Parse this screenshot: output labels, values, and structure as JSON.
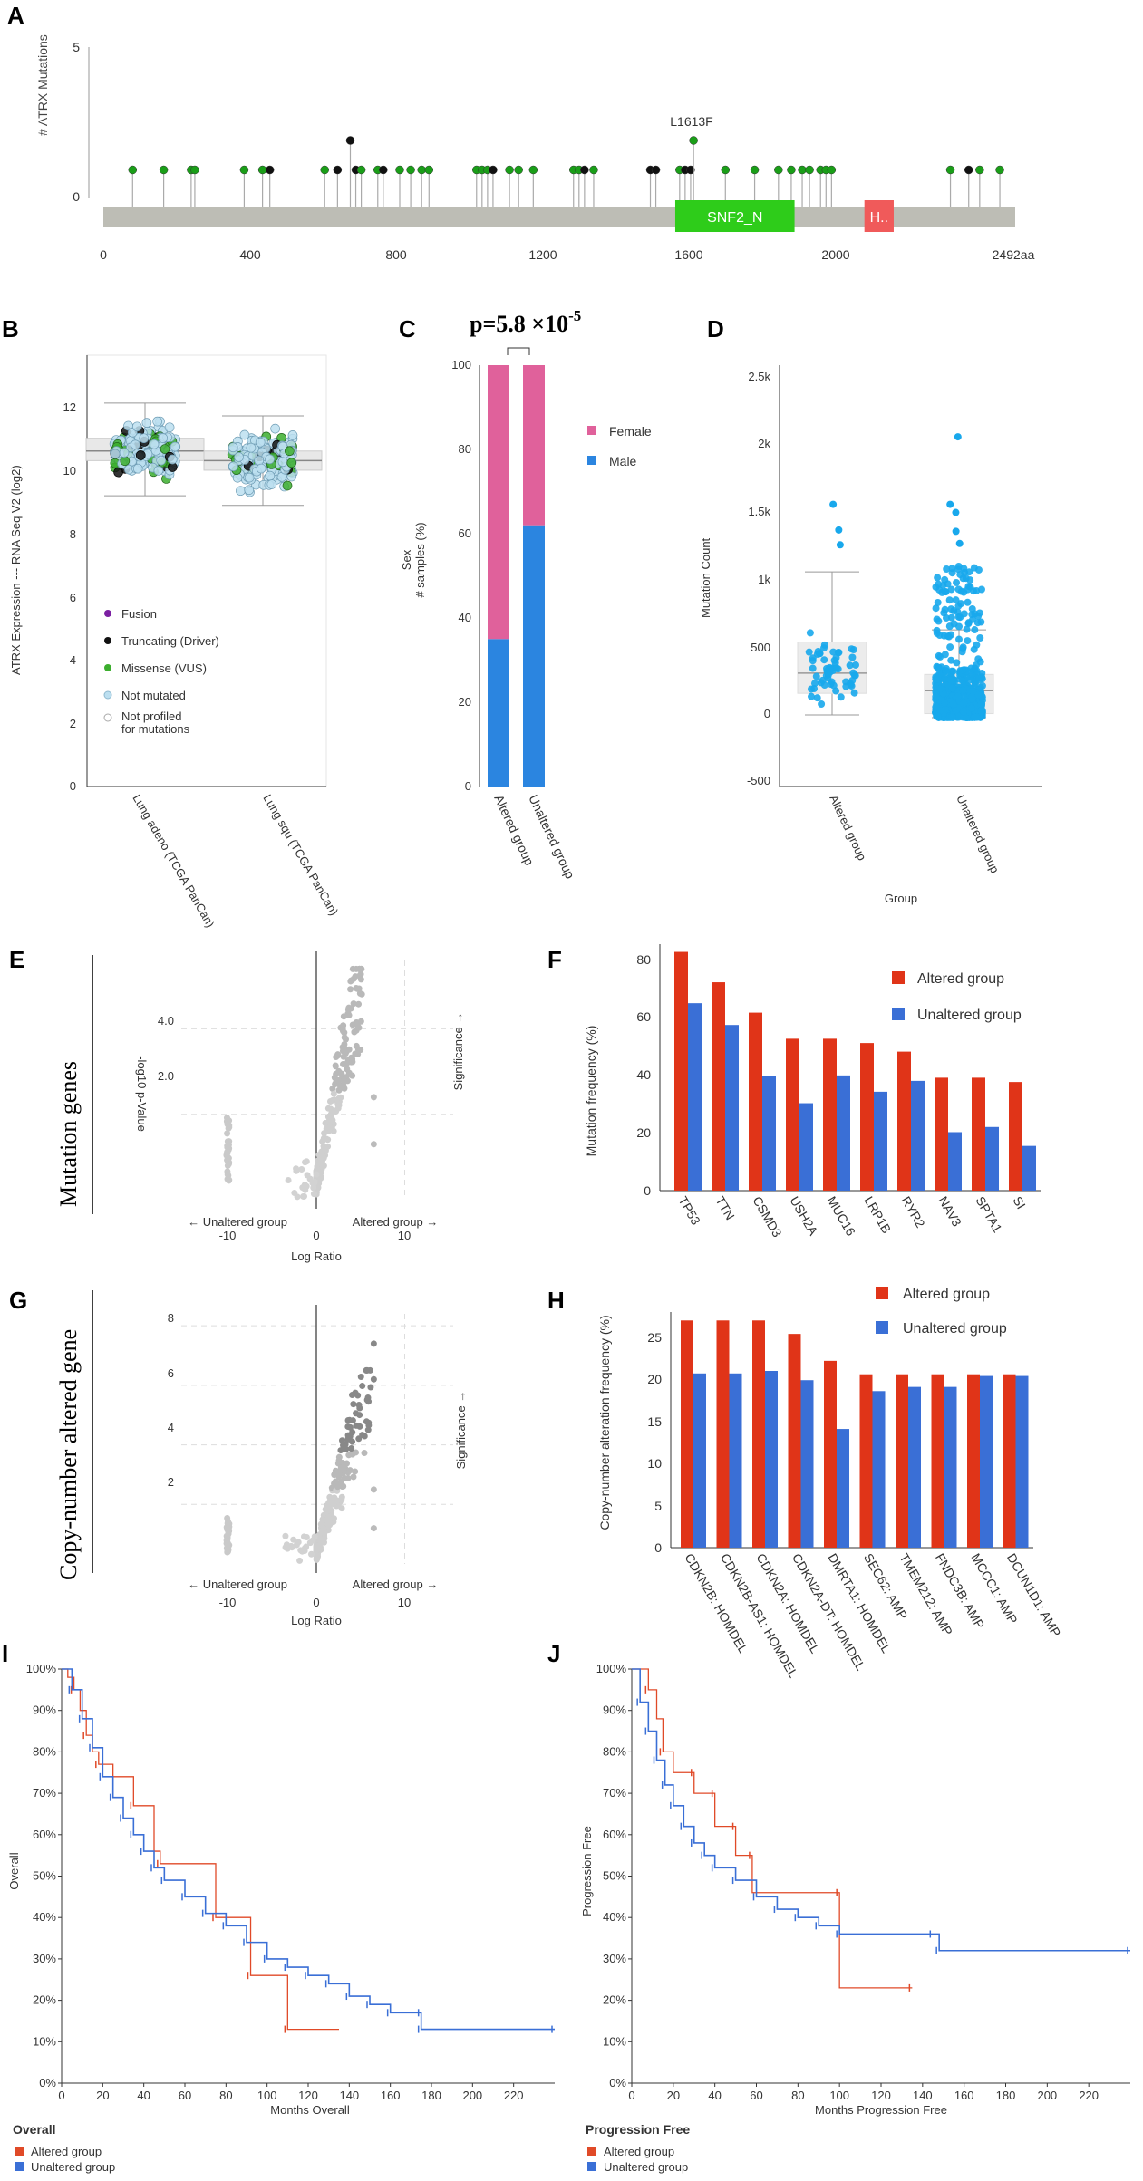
{
  "panels": {
    "A": "A",
    "B": "B",
    "C": "C",
    "D": "D",
    "E": "E",
    "F": "F",
    "G": "G",
    "H": "H",
    "I": "I",
    "J": "J"
  },
  "chart_data": [
    {
      "id": "A",
      "type": "scatter",
      "title": "",
      "ylabel": "# ATRX Mutations",
      "y_ticks": [
        "5",
        "0"
      ],
      "x_ticks": [
        "0",
        "400",
        "800",
        "1200",
        "1600",
        "2000",
        "2492aa"
      ],
      "xlim": [
        0,
        2492
      ],
      "ylim": [
        0,
        5
      ],
      "domains": [
        {
          "name": "SNF2_N",
          "start": 1563,
          "end": 1889,
          "color": "#2ecc1a"
        },
        {
          "name": "H..",
          "start": 2080,
          "end": 2160,
          "color": "#f05a5a"
        }
      ],
      "annotation": "L1613F",
      "lollipops": [
        {
          "pos": 80,
          "count": 1,
          "type": "missense"
        },
        {
          "pos": 165,
          "count": 1,
          "type": "missense"
        },
        {
          "pos": 240,
          "count": 1,
          "type": "missense"
        },
        {
          "pos": 250,
          "count": 1,
          "type": "missense"
        },
        {
          "pos": 385,
          "count": 1,
          "type": "missense"
        },
        {
          "pos": 435,
          "count": 1,
          "type": "missense"
        },
        {
          "pos": 455,
          "count": 1,
          "type": "truncating"
        },
        {
          "pos": 605,
          "count": 1,
          "type": "missense"
        },
        {
          "pos": 640,
          "count": 1,
          "type": "truncating"
        },
        {
          "pos": 675,
          "count": 2,
          "type": "truncating"
        },
        {
          "pos": 690,
          "count": 1,
          "type": "truncating"
        },
        {
          "pos": 705,
          "count": 1,
          "type": "missense"
        },
        {
          "pos": 750,
          "count": 1,
          "type": "missense"
        },
        {
          "pos": 765,
          "count": 1,
          "type": "truncating"
        },
        {
          "pos": 810,
          "count": 1,
          "type": "missense"
        },
        {
          "pos": 840,
          "count": 1,
          "type": "missense"
        },
        {
          "pos": 870,
          "count": 1,
          "type": "missense"
        },
        {
          "pos": 890,
          "count": 1,
          "type": "missense"
        },
        {
          "pos": 1020,
          "count": 1,
          "type": "missense"
        },
        {
          "pos": 1035,
          "count": 1,
          "type": "missense"
        },
        {
          "pos": 1050,
          "count": 1,
          "type": "missense"
        },
        {
          "pos": 1065,
          "count": 1,
          "type": "truncating"
        },
        {
          "pos": 1110,
          "count": 1,
          "type": "missense"
        },
        {
          "pos": 1135,
          "count": 1,
          "type": "missense"
        },
        {
          "pos": 1175,
          "count": 1,
          "type": "missense"
        },
        {
          "pos": 1285,
          "count": 1,
          "type": "missense"
        },
        {
          "pos": 1300,
          "count": 1,
          "type": "missense"
        },
        {
          "pos": 1315,
          "count": 1,
          "type": "truncating"
        },
        {
          "pos": 1340,
          "count": 1,
          "type": "missense"
        },
        {
          "pos": 1495,
          "count": 1,
          "type": "truncating"
        },
        {
          "pos": 1510,
          "count": 1,
          "type": "truncating"
        },
        {
          "pos": 1575,
          "count": 1,
          "type": "missense"
        },
        {
          "pos": 1590,
          "count": 1,
          "type": "truncating"
        },
        {
          "pos": 1605,
          "count": 1,
          "type": "truncating"
        },
        {
          "pos": 1613,
          "count": 2,
          "type": "missense"
        },
        {
          "pos": 1700,
          "count": 1,
          "type": "missense"
        },
        {
          "pos": 1780,
          "count": 1,
          "type": "missense"
        },
        {
          "pos": 1845,
          "count": 1,
          "type": "missense"
        },
        {
          "pos": 1880,
          "count": 1,
          "type": "missense"
        },
        {
          "pos": 1910,
          "count": 1,
          "type": "missense"
        },
        {
          "pos": 1930,
          "count": 1,
          "type": "missense"
        },
        {
          "pos": 1960,
          "count": 1,
          "type": "missense"
        },
        {
          "pos": 1975,
          "count": 1,
          "type": "missense"
        },
        {
          "pos": 1990,
          "count": 1,
          "type": "missense"
        },
        {
          "pos": 2315,
          "count": 1,
          "type": "missense"
        },
        {
          "pos": 2365,
          "count": 1,
          "type": "truncating"
        },
        {
          "pos": 2395,
          "count": 1,
          "type": "missense"
        },
        {
          "pos": 2450,
          "count": 1,
          "type": "missense"
        }
      ]
    },
    {
      "id": "B",
      "type": "scatter",
      "ylabel": "ATRX Expression --- RNA Seq V2 (log2)",
      "y_ticks": [
        "12",
        "10",
        "8",
        "6",
        "4",
        "2",
        "0"
      ],
      "ylim": [
        0,
        13.5
      ],
      "categories": [
        "Lung adeno (TCGA PanCan)",
        "Lung squ (TCGA PanCan)"
      ],
      "box": [
        {
          "q1": 10.2,
          "median": 10.5,
          "q3": 10.9,
          "whisker_low": 9.1,
          "whisker_high": 12.0
        },
        {
          "q1": 9.9,
          "median": 10.2,
          "q3": 10.5,
          "whisker_low": 8.8,
          "whisker_high": 11.6
        }
      ],
      "legend": [
        "Fusion",
        "Truncating (Driver)",
        "Missense (VUS)",
        "Not mutated",
        "Not profiled",
        "for mutations"
      ]
    },
    {
      "id": "C",
      "type": "bar",
      "title": "p=5.8 ×10",
      "p_exponent": "-5",
      "ylabel_lines": [
        "Sex",
        "# samples (%)"
      ],
      "y_ticks": [
        "100",
        "80",
        "60",
        "40",
        "20",
        "0"
      ],
      "ylim": [
        0,
        100
      ],
      "categories": [
        "Altered group",
        "Unaltered group"
      ],
      "series": [
        {
          "name": "Male",
          "values": [
            35,
            62
          ],
          "color": "#2b85e0"
        },
        {
          "name": "Female",
          "values": [
            65,
            38
          ],
          "color": "#e0619b"
        }
      ],
      "legend": [
        "Female",
        "Male"
      ]
    },
    {
      "id": "D",
      "type": "scatter",
      "ylabel": "Mutation Count",
      "xlabel": "Group",
      "y_ticks": [
        "2.5k",
        "2k",
        "1.5k",
        "1k",
        "500",
        "0",
        "-500"
      ],
      "ylim": [
        -500,
        2600
      ],
      "categories": [
        "Altered group",
        "Unaltered group"
      ],
      "box": [
        {
          "q1": 180,
          "median": 330,
          "q3": 560,
          "whisker_low": 20,
          "whisker_high": 1080
        },
        {
          "q1": 30,
          "median": 200,
          "q3": 320,
          "whisker_low": 0,
          "whisker_high": 650
        }
      ],
      "outliers": [
        [
          0,
          1580
        ],
        [
          0,
          1390
        ],
        [
          0,
          1280
        ],
        [
          1,
          2080
        ],
        [
          1,
          1580
        ],
        [
          1,
          1520
        ],
        [
          1,
          1380
        ],
        [
          1,
          1290
        ]
      ]
    },
    {
      "id": "E",
      "type": "scatter",
      "row_label": "Mutation genes",
      "ylabel": "-log10 p-Value",
      "xlabel": "Log Ratio",
      "y_ticks": [
        "4.0",
        "2.0"
      ],
      "x_ticks": [
        "-10",
        "0",
        "10"
      ],
      "xlim": [
        -16,
        16
      ],
      "ylim": [
        0,
        5.6
      ],
      "left_note": "← Unaltered group",
      "right_note": "Altered group →",
      "side_note": "Significance →"
    },
    {
      "id": "F",
      "type": "bar",
      "ylabel": "Mutation frequency (%)",
      "y_ticks": [
        "80",
        "60",
        "40",
        "20",
        "0"
      ],
      "ylim": [
        0,
        86
      ],
      "categories": [
        "TP53",
        "TTN",
        "CSMD3",
        "USH2A",
        "MUC16",
        "LRP1B",
        "RYR2",
        "NAV3",
        "SPTA1",
        "SI"
      ],
      "series": [
        {
          "name": "Altered group",
          "values": [
            83.3,
            72.7,
            62.1,
            53.0,
            53.0,
            51.5,
            48.5,
            39.4,
            39.4,
            37.9
          ],
          "color": "#e03418"
        },
        {
          "name": "Unaltered group",
          "values": [
            65.4,
            57.8,
            40.0,
            30.5,
            40.2,
            34.5,
            38.3,
            20.4,
            22.2,
            15.6
          ],
          "color": "#3a6fd6"
        }
      ]
    },
    {
      "id": "G",
      "type": "scatter",
      "row_label": "Copy-number altered gene",
      "ylabel": "",
      "xlabel": "Log Ratio",
      "y_ticks": [
        "8",
        "6",
        "4",
        "2"
      ],
      "x_ticks": [
        "-10",
        "0",
        "10"
      ],
      "xlim": [
        -16,
        16
      ],
      "ylim": [
        0,
        8.4
      ],
      "left_note": "← Unaltered group",
      "right_note": "Altered group →",
      "side_note": "Significance →"
    },
    {
      "id": "H",
      "type": "bar",
      "ylabel": "Copy-number alteration frequency (%)",
      "y_ticks": [
        "25",
        "20",
        "15",
        "10",
        "5",
        "0"
      ],
      "ylim": [
        0,
        28
      ],
      "categories": [
        "CDKN2B: HOMDEL",
        "CDKN2B-AS1: HOMDEL",
        "CDKN2A: HOMDEL",
        "CDKN2A-DT: HOMDEL",
        "DMRTA1: HOMDEL",
        "SEC62: AMP",
        "TMEM212: AMP",
        "FNDC3B: AMP",
        "MCCC1: AMP",
        "DCUN1D1: AMP"
      ],
      "series": [
        {
          "name": "Altered group",
          "values": [
            27.0,
            27.0,
            27.0,
            25.4,
            22.2,
            20.6,
            20.6,
            20.6,
            20.6,
            20.6
          ],
          "color": "#e03418"
        },
        {
          "name": "Unaltered group",
          "values": [
            20.7,
            20.7,
            21.0,
            19.9,
            14.1,
            18.6,
            19.1,
            19.1,
            20.4,
            20.4
          ],
          "color": "#3a6fd6"
        }
      ]
    },
    {
      "id": "I",
      "type": "line",
      "ylabel": "Overall",
      "xlabel": "Months Overall",
      "legend_title": "Overall",
      "y_ticks": [
        "100%",
        "90%",
        "80%",
        "70%",
        "60%",
        "50%",
        "40%",
        "30%",
        "20%",
        "10%",
        "0%"
      ],
      "x_ticks": [
        "0",
        "20",
        "40",
        "60",
        "80",
        "100",
        "120",
        "140",
        "160",
        "180",
        "200",
        "220"
      ],
      "xlim": [
        0,
        240
      ],
      "ylim": [
        0,
        100
      ],
      "series": [
        {
          "name": "Altered group",
          "color": "#e04a28",
          "points": [
            [
              0,
              100
            ],
            [
              3,
              98
            ],
            [
              6,
              95
            ],
            [
              9,
              90
            ],
            [
              12,
              84
            ],
            [
              15,
              80
            ],
            [
              18,
              77
            ],
            [
              25,
              74
            ],
            [
              35,
              67
            ],
            [
              45,
              56
            ],
            [
              48,
              53
            ],
            [
              75,
              53
            ],
            [
              75,
              40
            ],
            [
              92,
              40
            ],
            [
              92,
              26
            ],
            [
              110,
              26
            ],
            [
              110,
              13
            ],
            [
              135,
              13
            ]
          ]
        },
        {
          "name": "Unaltered group",
          "color": "#3a6fd6",
          "points": [
            [
              0,
              100
            ],
            [
              5,
              95
            ],
            [
              10,
              88
            ],
            [
              15,
              81
            ],
            [
              20,
              74
            ],
            [
              25,
              69
            ],
            [
              30,
              64
            ],
            [
              35,
              60
            ],
            [
              40,
              56
            ],
            [
              45,
              52
            ],
            [
              50,
              49
            ],
            [
              60,
              45
            ],
            [
              70,
              41
            ],
            [
              80,
              38
            ],
            [
              90,
              34
            ],
            [
              100,
              30
            ],
            [
              110,
              28
            ],
            [
              120,
              26
            ],
            [
              130,
              24
            ],
            [
              140,
              21
            ],
            [
              150,
              19
            ],
            [
              160,
              17
            ],
            [
              175,
              17
            ],
            [
              175,
              13
            ],
            [
              240,
              13
            ]
          ]
        }
      ]
    },
    {
      "id": "J",
      "type": "line",
      "ylabel": "Progression Free",
      "xlabel": "Months Progression Free",
      "legend_title": "Progression Free",
      "y_ticks": [
        "100%",
        "90%",
        "80%",
        "70%",
        "60%",
        "50%",
        "40%",
        "30%",
        "20%",
        "10%",
        "0%"
      ],
      "x_ticks": [
        "0",
        "20",
        "40",
        "60",
        "80",
        "100",
        "120",
        "140",
        "160",
        "180",
        "200",
        "220"
      ],
      "xlim": [
        0,
        240
      ],
      "ylim": [
        0,
        100
      ],
      "series": [
        {
          "name": "Altered group",
          "color": "#e04a28",
          "points": [
            [
              0,
              100
            ],
            [
              5,
              100
            ],
            [
              8,
              95
            ],
            [
              12,
              88
            ],
            [
              15,
              80
            ],
            [
              20,
              75
            ],
            [
              30,
              75
            ],
            [
              30,
              70
            ],
            [
              40,
              70
            ],
            [
              40,
              62
            ],
            [
              50,
              62
            ],
            [
              50,
              55
            ],
            [
              58,
              55
            ],
            [
              58,
              46
            ],
            [
              100,
              46
            ],
            [
              100,
              23
            ],
            [
              135,
              23
            ]
          ]
        },
        {
          "name": "Unaltered group",
          "color": "#3a6fd6",
          "points": [
            [
              0,
              100
            ],
            [
              4,
              92
            ],
            [
              8,
              85
            ],
            [
              12,
              78
            ],
            [
              16,
              72
            ],
            [
              20,
              67
            ],
            [
              25,
              62
            ],
            [
              30,
              58
            ],
            [
              35,
              55
            ],
            [
              40,
              52
            ],
            [
              50,
              49
            ],
            [
              60,
              45
            ],
            [
              70,
              42
            ],
            [
              80,
              40
            ],
            [
              90,
              38
            ],
            [
              100,
              36
            ],
            [
              145,
              36
            ],
            [
              148,
              32
            ],
            [
              240,
              32
            ]
          ]
        }
      ]
    }
  ]
}
